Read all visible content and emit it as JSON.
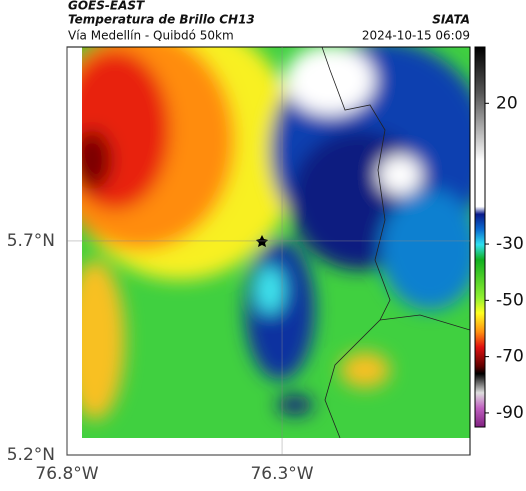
{
  "header": {
    "title": "GOES-EAST",
    "subtitle": "Temperatura de Brillo CH13",
    "source": "SIATA",
    "route": "Vía Medellín - Quibdó 50km",
    "timestamp": "2024-10-15 06:09"
  },
  "map": {
    "xlim": [
      -76.8,
      -75.863
    ],
    "ylim": [
      5.2,
      6.153
    ],
    "xticks": [
      {
        "value": -76.8,
        "label": "76.8°W"
      },
      {
        "value": -76.3,
        "label": "76.3°W"
      }
    ],
    "yticks": [
      {
        "value": 5.2,
        "label": "5.2°N"
      },
      {
        "value": 5.7,
        "label": "5.7°N"
      }
    ]
  },
  "colorbar": {
    "clim": [
      40,
      -95
    ],
    "ticks": [
      20,
      -30,
      -50,
      -70,
      -90
    ]
  }
}
